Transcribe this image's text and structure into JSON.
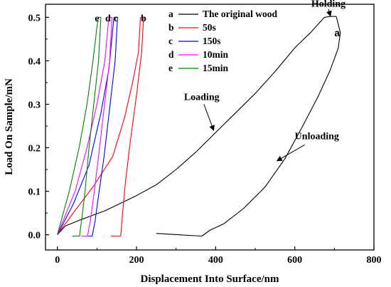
{
  "chart_data": {
    "type": "line",
    "xlabel": "Displacement Into Surface/nm",
    "ylabel": "Load On Sample/mN",
    "xlim": [
      -30,
      800
    ],
    "ylim": [
      -0.035,
      0.53
    ],
    "xticks": [
      0,
      200,
      400,
      600,
      800
    ],
    "yticks": [
      0.0,
      0.1,
      0.2,
      0.3,
      0.4,
      0.5
    ],
    "xtick_labels": [
      "0",
      "200",
      "400",
      "600",
      "800"
    ],
    "ytick_labels": [
      "0.0",
      "0.1",
      "0.2",
      "0.3",
      "0.4",
      "0.5"
    ],
    "grid": false,
    "legend_position": "top-center",
    "series": [
      {
        "key": "a",
        "name": "The original wood",
        "color": "#000000",
        "curve_label": "a",
        "loading": [
          [
            0,
            0
          ],
          [
            20,
            0.02
          ],
          [
            60,
            0.035
          ],
          [
            120,
            0.055
          ],
          [
            200,
            0.09
          ],
          [
            250,
            0.115
          ],
          [
            300,
            0.15
          ],
          [
            350,
            0.19
          ],
          [
            400,
            0.235
          ],
          [
            450,
            0.28
          ],
          [
            500,
            0.325
          ],
          [
            550,
            0.375
          ],
          [
            600,
            0.43
          ],
          [
            640,
            0.465
          ],
          [
            675,
            0.5
          ]
        ],
        "holding": [
          [
            675,
            0.5
          ],
          [
            690,
            0.502
          ],
          [
            705,
            0.502
          ]
        ],
        "unloading": [
          [
            705,
            0.502
          ],
          [
            715,
            0.465
          ],
          [
            710,
            0.43
          ],
          [
            690,
            0.38
          ],
          [
            660,
            0.32
          ],
          [
            620,
            0.25
          ],
          [
            575,
            0.175
          ],
          [
            525,
            0.11
          ],
          [
            470,
            0.06
          ],
          [
            420,
            0.025
          ],
          [
            385,
            0.01
          ],
          [
            365,
            -0.003
          ],
          [
            250,
            0.003
          ]
        ]
      },
      {
        "key": "b",
        "name": "50s",
        "color": "#ff0000",
        "curve_label": "b",
        "loading": [
          [
            0,
            0
          ],
          [
            40,
            0.05
          ],
          [
            90,
            0.11
          ],
          [
            140,
            0.18
          ],
          [
            170,
            0.27
          ],
          [
            190,
            0.35
          ],
          [
            205,
            0.42
          ],
          [
            210,
            0.5
          ]
        ],
        "holding": [
          [
            210,
            0.5
          ],
          [
            218,
            0.5
          ]
        ],
        "unloading": [
          [
            218,
            0.5
          ],
          [
            213,
            0.42
          ],
          [
            200,
            0.32
          ],
          [
            185,
            0.22
          ],
          [
            172,
            0.12
          ],
          [
            165,
            0.05
          ],
          [
            160,
            -0.003
          ],
          [
            135,
            -0.003
          ]
        ]
      },
      {
        "key": "c",
        "name": "150s",
        "color": "#0000ff",
        "curve_label": "c",
        "loading": [
          [
            0,
            0
          ],
          [
            40,
            0.07
          ],
          [
            80,
            0.16
          ],
          [
            110,
            0.28
          ],
          [
            130,
            0.38
          ],
          [
            143,
            0.5
          ]
        ],
        "holding": [
          [
            143,
            0.5
          ],
          [
            152,
            0.5
          ]
        ],
        "unloading": [
          [
            152,
            0.5
          ],
          [
            146,
            0.4
          ],
          [
            132,
            0.29
          ],
          [
            118,
            0.18
          ],
          [
            104,
            0.09
          ],
          [
            95,
            0.03
          ],
          [
            88,
            -0.003
          ],
          [
            70,
            -0.003
          ]
        ]
      },
      {
        "key": "d",
        "name": "10min",
        "color": "#ff00ff",
        "curve_label": "d",
        "loading": [
          [
            0,
            0
          ],
          [
            45,
            0.1
          ],
          [
            75,
            0.2
          ],
          [
            100,
            0.3
          ],
          [
            120,
            0.4
          ],
          [
            130,
            0.5
          ]
        ],
        "holding": [
          [
            130,
            0.5
          ],
          [
            138,
            0.5
          ]
        ],
        "unloading": [
          [
            138,
            0.5
          ],
          [
            132,
            0.4
          ],
          [
            118,
            0.29
          ],
          [
            104,
            0.18
          ],
          [
            92,
            0.09
          ],
          [
            83,
            0.03
          ],
          [
            76,
            -0.003
          ],
          [
            60,
            -0.003
          ]
        ]
      },
      {
        "key": "e",
        "name": "15min",
        "color": "#008000",
        "curve_label": "e",
        "loading": [
          [
            0,
            0
          ],
          [
            30,
            0.1
          ],
          [
            55,
            0.2
          ],
          [
            75,
            0.3
          ],
          [
            90,
            0.4
          ],
          [
            103,
            0.5
          ]
        ],
        "holding": [
          [
            103,
            0.5
          ],
          [
            110,
            0.5
          ]
        ],
        "unloading": [
          [
            110,
            0.5
          ],
          [
            104,
            0.4
          ],
          [
            92,
            0.3
          ],
          [
            80,
            0.2
          ],
          [
            70,
            0.1
          ],
          [
            62,
            0.04
          ],
          [
            56,
            -0.003
          ],
          [
            38,
            -0.003
          ]
        ]
      }
    ],
    "annotations": [
      {
        "text": "Holding",
        "x": 685,
        "y": 0.524,
        "arrow_to": [
          690,
          0.503
        ]
      },
      {
        "text": "Loading",
        "x": 320,
        "y": 0.31,
        "arrow_to": [
          395,
          0.24
        ]
      },
      {
        "text": "Unloading",
        "x": 600,
        "y": 0.22,
        "arrow_to": [
          555,
          0.17
        ]
      }
    ]
  }
}
